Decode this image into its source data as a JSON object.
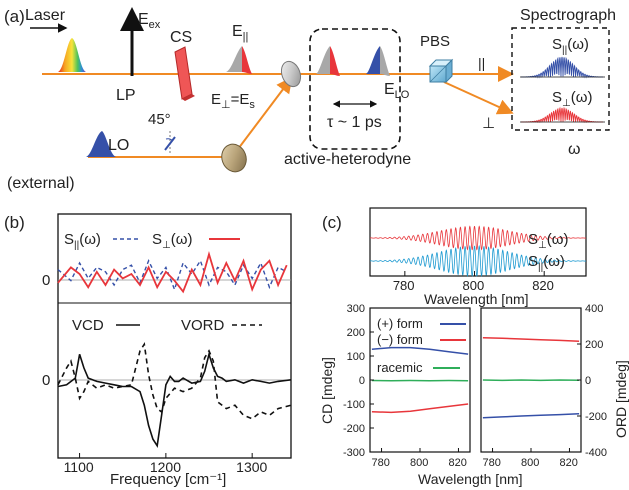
{
  "panel_a": {
    "label": "(a)",
    "laser": "Laser",
    "e_ex": "E",
    "e_ex_sub": "ex",
    "lp": "LP",
    "cs": "CS",
    "e_par": "E",
    "e_par_sub": "||",
    "e_perp": "E",
    "e_perp_sub": "⊥",
    "e_perp_eq": "=E",
    "e_s_sub": "s",
    "e_lo": "E",
    "e_lo_sub": "LO",
    "tau": "τ ~ 1 ps",
    "pbs": "PBS",
    "par_mark": "||",
    "perp_mark": "⊥",
    "lo": "LO",
    "angle": "45°",
    "external": "(external)",
    "active_heterodyne": "active-heterodyne",
    "spectrograph": "Spectrograph",
    "s_par": "S",
    "s_par_sub": "||",
    "s_par_arg": "(ω)",
    "s_perp": "S",
    "s_perp_sub": "⊥",
    "s_perp_arg": "(ω)",
    "omega": "ω"
  },
  "panel_b": {
    "label": "(b)",
    "legend_top_1": "S",
    "legend_top_1_sub": "||",
    "legend_top_1_arg": "(ω)",
    "legend_top_2": "S",
    "legend_top_2_sub": "⊥",
    "legend_top_2_arg": "(ω)",
    "legend_bot_1": "VCD",
    "legend_bot_2": "VORD",
    "zero_label": "0",
    "xlabel": "Frequency [cm⁻¹]"
  },
  "panel_c": {
    "label": "(c)",
    "s_perp": "S",
    "s_perp_sub": "⊥",
    "s_perp_arg": "(ω)",
    "s_par": "S",
    "s_par_sub": "||",
    "s_par_arg": "(ω)",
    "top_xlabel": "Wavelength [nm]",
    "legend": [
      "(+) form",
      "(−) form",
      "racemic"
    ],
    "ylabel_left": "CD [mdeg]",
    "ylabel_right": "ORD [mdeg]",
    "bottom_xlabel": "Wavelength [nm]"
  },
  "colors": {
    "red": "#e8363b",
    "blue": "#3550a8",
    "green": "#2fae5a",
    "cyan": "#1d9ad1",
    "orange": "#f08a24",
    "gray": "#909090"
  },
  "chart_data": [
    {
      "id": "b-top",
      "type": "line",
      "series": [
        {
          "name": "S||(ω)",
          "style": "dashed",
          "x": [
            1075,
            1090,
            1100,
            1110,
            1120,
            1130,
            1140,
            1150,
            1160,
            1170,
            1180,
            1190,
            1200,
            1210,
            1220,
            1230,
            1240,
            1250,
            1260,
            1270,
            1280,
            1290,
            1300,
            1310,
            1320,
            1330,
            1340
          ],
          "y": [
            0.2,
            -0.3,
            0.5,
            -0.2,
            0.3,
            0.1,
            -0.5,
            0.2,
            0.4,
            -0.4,
            0.6,
            -0.2,
            0.3,
            -0.7,
            0.5,
            0.0,
            0.6,
            -0.5,
            0.3,
            0.1,
            -0.5,
            0.4,
            -0.2,
            0.5,
            -0.6,
            0.3,
            0.1
          ]
        },
        {
          "name": "S⊥(ω)",
          "style": "solid",
          "x": [
            1075,
            1090,
            1100,
            1110,
            1120,
            1130,
            1140,
            1150,
            1160,
            1170,
            1180,
            1190,
            1200,
            1210,
            1220,
            1230,
            1240,
            1250,
            1260,
            1270,
            1280,
            1290,
            1300,
            1310,
            1320,
            1330,
            1340
          ],
          "y": [
            -0.4,
            0.3,
            0.0,
            -0.6,
            0.1,
            -0.5,
            0.2,
            -0.2,
            0.0,
            -0.5,
            0.3,
            -0.6,
            0.1,
            -0.3,
            -0.8,
            0.2,
            -0.5,
            0.9,
            -0.4,
            0.5,
            -0.3,
            0.6,
            -0.7,
            0.2,
            0.6,
            -0.5,
            0.4
          ]
        }
      ],
      "xlim": [
        1075,
        1345
      ],
      "ylim": [
        -1,
        1
      ]
    },
    {
      "id": "b-bottom",
      "type": "line",
      "series": [
        {
          "name": "VCD",
          "style": "solid",
          "x": [
            1075,
            1085,
            1095,
            1100,
            1105,
            1110,
            1120,
            1130,
            1140,
            1150,
            1160,
            1170,
            1175,
            1180,
            1185,
            1190,
            1195,
            1200,
            1205,
            1210,
            1215,
            1220,
            1230,
            1240,
            1245,
            1250,
            1255,
            1260,
            1265,
            1270,
            1280,
            1290,
            1300,
            1310,
            1320,
            1330,
            1345
          ],
          "y": [
            0.05,
            0.1,
            0.3,
            1.0,
            0.6,
            0.3,
            0.2,
            0.15,
            0.1,
            0.05,
            0.05,
            -0.1,
            -0.5,
            -1.1,
            -1.5,
            -1.7,
            -0.8,
            0.1,
            0.35,
            0.2,
            0.2,
            0.3,
            0.15,
            0.2,
            0.5,
            1.0,
            0.6,
            0.35,
            0.3,
            0.2,
            0.25,
            0.15,
            0.25,
            0.2,
            0.15,
            0.2,
            0.25
          ]
        },
        {
          "name": "VORD",
          "style": "dashed",
          "x": [
            1075,
            1085,
            1090,
            1095,
            1100,
            1105,
            1110,
            1120,
            1130,
            1140,
            1150,
            1160,
            1165,
            1170,
            1175,
            1180,
            1185,
            1190,
            1195,
            1200,
            1210,
            1220,
            1230,
            1240,
            1245,
            1250,
            1255,
            1260,
            1270,
            1280,
            1290,
            1300,
            1310,
            1320,
            1330,
            1345
          ],
          "y": [
            0.1,
            0.6,
            0.8,
            0.3,
            -0.3,
            -0.1,
            0.2,
            0.0,
            0.1,
            0.0,
            0.05,
            0.1,
            0.6,
            1.1,
            1.3,
            0.4,
            -0.2,
            -0.6,
            -0.7,
            -0.3,
            0.0,
            -0.1,
            0.0,
            0.3,
            0.9,
            1.1,
            0.8,
            -0.4,
            -0.6,
            -0.5,
            -0.8,
            -0.9,
            -0.7,
            -0.8,
            -0.6,
            -0.5
          ]
        }
      ],
      "xlim": [
        1075,
        1345
      ],
      "ylim": [
        -2,
        1.6
      ],
      "xticks": [
        1100,
        1200,
        1300
      ]
    },
    {
      "id": "c-top",
      "type": "line",
      "series": [
        {
          "name": "S⊥(ω)",
          "center": 800,
          "width": 14,
          "amplitude": 0.9,
          "period": 1.35
        },
        {
          "name": "S||(ω)",
          "center": 800,
          "width": 14,
          "amplitude": 1.0,
          "period": 1.35
        }
      ],
      "xlim": [
        770,
        832
      ],
      "xticks": [
        780,
        800,
        820
      ]
    },
    {
      "id": "c-left",
      "type": "line",
      "series": [
        {
          "name": "(+) form",
          "x": [
            775,
            785,
            795,
            805,
            815,
            825
          ],
          "y": [
            128,
            135,
            135,
            128,
            118,
            108
          ]
        },
        {
          "name": "(−) form",
          "x": [
            775,
            785,
            795,
            805,
            815,
            825
          ],
          "y": [
            -132,
            -135,
            -130,
            -120,
            -110,
            -100
          ]
        },
        {
          "name": "racemic",
          "x": [
            775,
            785,
            795,
            805,
            815,
            825
          ],
          "y": [
            -2,
            -3,
            -2,
            -3,
            -2,
            -3
          ]
        }
      ],
      "xlim": [
        774,
        826
      ],
      "ylim": [
        -300,
        300
      ],
      "xticks": [
        780,
        800,
        820
      ],
      "yticks": [
        -300,
        -200,
        -100,
        0,
        100,
        200,
        300
      ]
    },
    {
      "id": "c-right",
      "type": "line",
      "series": [
        {
          "name": "(+) form",
          "x": [
            775,
            785,
            795,
            805,
            815,
            825
          ],
          "y": [
            -210,
            -205,
            -200,
            -196,
            -192,
            -188
          ]
        },
        {
          "name": "(−) form",
          "x": [
            775,
            785,
            795,
            805,
            815,
            825
          ],
          "y": [
            235,
            232,
            228,
            224,
            220,
            215
          ]
        },
        {
          "name": "racemic",
          "x": [
            775,
            785,
            795,
            805,
            815,
            825
          ],
          "y": [
            0,
            -2,
            0,
            -2,
            0,
            -1
          ]
        }
      ],
      "xlim": [
        774,
        826
      ],
      "ylim": [
        -400,
        400
      ],
      "xticks": [
        780,
        800,
        820
      ],
      "yticks": [
        -400,
        -200,
        0,
        200,
        400
      ]
    }
  ]
}
